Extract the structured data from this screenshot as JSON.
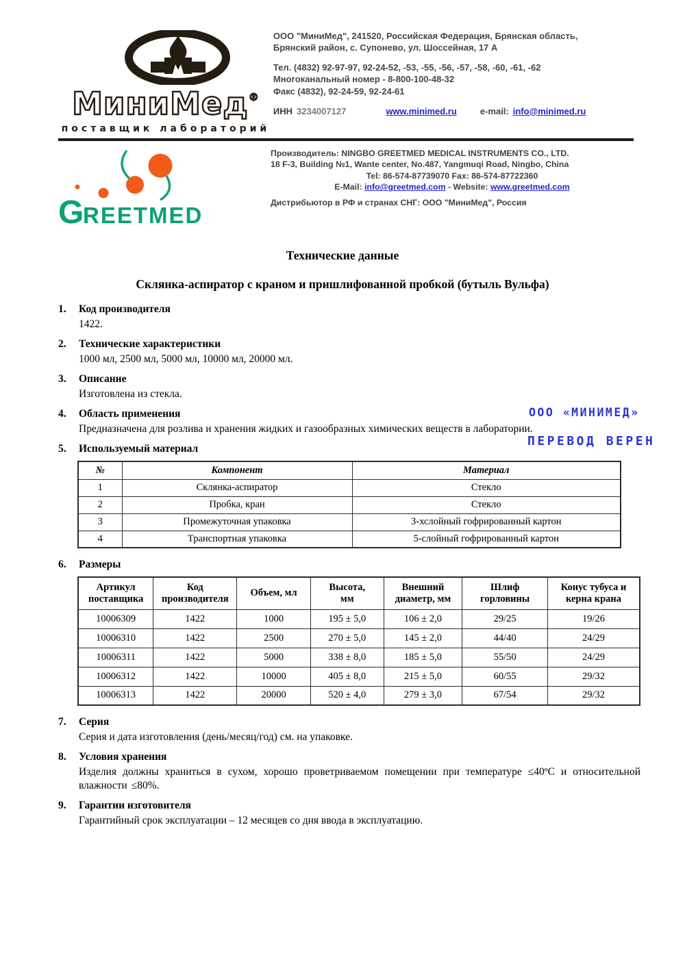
{
  "accent_colors": {
    "link_blue": "#2323cc",
    "stamp_blue": "#2835d5",
    "greetmed_green": "#0aa36e",
    "greetmed_orange": "#f25c1a",
    "logo_dark": "#251c12"
  },
  "minimed_logo": {
    "brand": "МиниМед",
    "registered": "®",
    "tagline": "поставщик  лабораторий"
  },
  "contact": {
    "addr1": "ООО \"МиниМед\", 241520, Российская Федерация, Брянская область,",
    "addr2": "Брянский район,  с. Супонево, ул. Шоссейная, 17 А",
    "phone1": "Тел. (4832) 92-97-97, 92-24-52, -53, -55, -56, -57, -58, -60, -61, -62",
    "phone2": "Многоканальный номер - 8-800-100-48-32",
    "fax": "Факс (4832), 92-24-59, 92-24-61",
    "inn_label": "ИНН",
    "inn_value": "3234007127",
    "website": "www.minimed.ru",
    "email_label": "e-mail:",
    "email": "info@minimed.ru"
  },
  "greetmed": {
    "logo_text_first": "G",
    "logo_text_rest": "REETMED"
  },
  "producer": {
    "line1": "Производитель: NINGBO GREETMED MEDICAL INSTRUMENTS CO., LTD.",
    "line2": "18 F-3, Building №1, Wante center, No.487, Yangmuqi Road, Ningbo, China",
    "line3": "Tel: 86-574-87739070    Fax: 86-574-87722360",
    "line4_label": "E-Mail:",
    "line4_email": "info@greetmed.com",
    "line4_mid": " - Website: ",
    "line4_site": "www.greetmed.com",
    "line5": "Дистрибьютор в РФ и странах СНГ: ООО \"МиниМед\", Россия"
  },
  "title": "Технические данные",
  "subtitle": "Склянка-аспиратор с краном и пришлифованной пробкой (бутыль Вульфа)",
  "stamp": {
    "line1": "ООО «МИНИМЕД»",
    "line2": "ПЕРЕВОД ВЕРЕН"
  },
  "sections": {
    "s1": {
      "num": "1.",
      "heading": "Код производителя",
      "body": "1422."
    },
    "s2": {
      "num": "2.",
      "heading": "Технические характеристики",
      "body": "1000 мл, 2500 мл, 5000 мл, 10000 мл, 20000 мл."
    },
    "s3": {
      "num": "3.",
      "heading": "Описание",
      "body": "Изготовлена из стекла."
    },
    "s4": {
      "num": "4.",
      "heading": "Область применения",
      "body": "Предназначена для розлива и хранения жидких и газообразных химических веществ в лаборатории."
    },
    "s5": {
      "num": "5.",
      "heading": "Используемый материал"
    },
    "s6": {
      "num": "6.",
      "heading": "Размеры"
    },
    "s7": {
      "num": "7.",
      "heading": "Серия",
      "body": "Серия и дата изготовления (день/месяц/год) см. на упаковке."
    },
    "s8": {
      "num": "8.",
      "heading": "Условия хранения",
      "body": "Изделия должны храниться в сухом, хорошо проветриваемом помещении при температуре ≤40ºС и относительной влажности ≤80%."
    },
    "s9": {
      "num": "9.",
      "heading": "Гарантии изготовителя",
      "body": "Гарантийный срок эксплуатации – 12 месяцев со дня ввода в эксплуатацию."
    }
  },
  "materials_table": {
    "headers": [
      "№",
      "Компонент",
      "Материал"
    ],
    "rows": [
      [
        "1",
        "Склянка-аспиратор",
        "Стекло"
      ],
      [
        "2",
        "Пробка, кран",
        "Стекло"
      ],
      [
        "3",
        "Промежуточная упаковка",
        "3-хслойный гофрированный картон"
      ],
      [
        "4",
        "Транспортная упаковка",
        "5-слойный гофрированный картон"
      ]
    ]
  },
  "dimensions_table": {
    "headers": [
      "Артикул\nпоставщика",
      "Код\nпроизводителя",
      "Объем, мл",
      "Высота,\nмм",
      "Внешний\nдиаметр, мм",
      "Шлиф\nгорловины",
      "Конус тубуса и\nкерна крана"
    ],
    "rows": [
      [
        "10006309",
        "1422",
        "1000",
        "195 ± 5,0",
        "106 ± 2,0",
        "29/25",
        "19/26"
      ],
      [
        "10006310",
        "1422",
        "2500",
        "270 ± 5,0",
        "145 ± 2,0",
        "44/40",
        "24/29"
      ],
      [
        "10006311",
        "1422",
        "5000",
        "338 ± 8,0",
        "185 ± 5,0",
        "55/50",
        "24/29"
      ],
      [
        "10006312",
        "1422",
        "10000",
        "405 ± 8,0",
        "215 ± 5,0",
        "60/55",
        "29/32"
      ],
      [
        "10006313",
        "1422",
        "20000",
        "520 ± 4,0",
        "279 ± 3,0",
        "67/54",
        "29/32"
      ]
    ]
  }
}
